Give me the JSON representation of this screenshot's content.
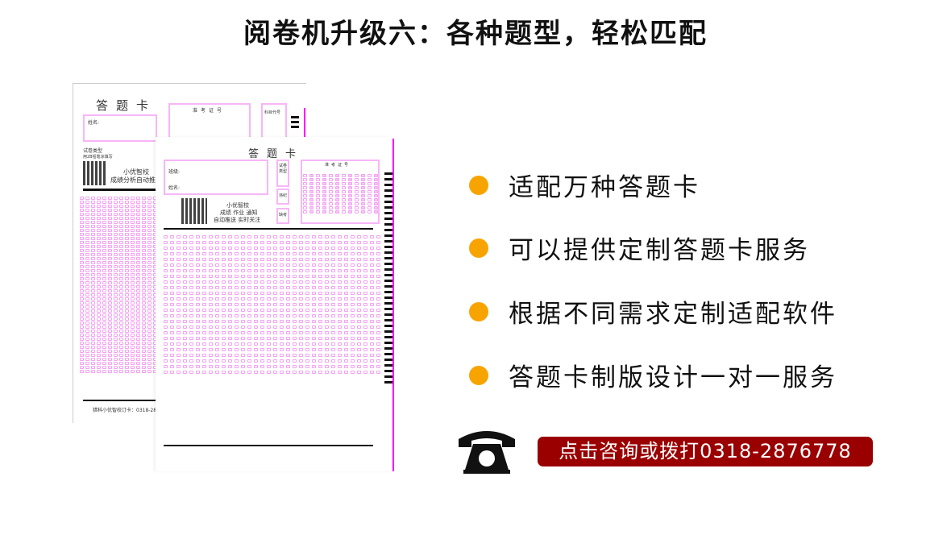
{
  "title": "阅卷机升级六：各种题型，轻松匹配",
  "back_sheet": {
    "heading": "答题卡",
    "name_label": "姓名:",
    "exam_id_label": "准考证号",
    "subject_code_label": "科目代号",
    "paper_type_label": "试卷类型",
    "pencil_note": "用2B铅笔涂填写",
    "brand": "小优智校",
    "brand_sub": "成绩分析自动推送",
    "footer": "猎科小优智校订卡：0318-28"
  },
  "front_sheet": {
    "heading": "答题卡",
    "class_label": "班级:",
    "name_label": "姓名:",
    "paper_type_label": "试卷类型",
    "violation_label": "违纪",
    "absent_label": "缺考",
    "exam_id_label": "准考证号",
    "brand": "小优智校",
    "brand_line1": "成绩 作业 通知",
    "brand_line2": "自动推送 实时关注"
  },
  "features": [
    {
      "label": "适配万种答题卡"
    },
    {
      "label": "可以提供定制答题卡服务"
    },
    {
      "label": "根据不同需求定制适配软件"
    },
    {
      "label": "答题卡制版设计一对一服务"
    }
  ],
  "contact": {
    "icon": "telephone-icon",
    "label": "点击咨询或拨打0318-2876778"
  },
  "colors": {
    "bullet": "#f7a400",
    "cta": "#9b0000",
    "sheet_pink": "#f0f"
  }
}
